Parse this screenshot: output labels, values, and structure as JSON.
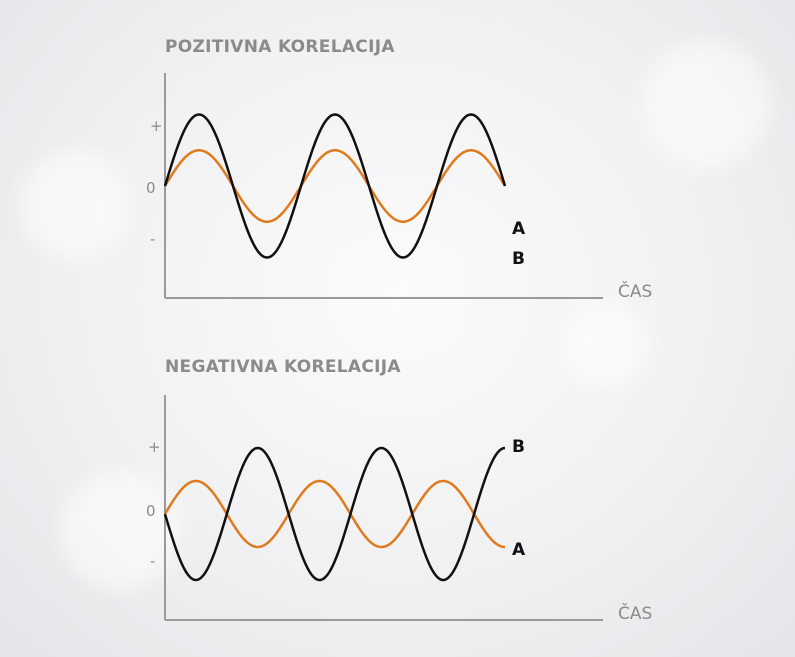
{
  "chart_data": [
    {
      "type": "line",
      "title": "POZITIVNA KORELACIJA",
      "xlabel": "ČAS",
      "yticks": [
        "+",
        "0",
        "-"
      ],
      "grid": false,
      "x_cycles": 2.5,
      "series": [
        {
          "name": "A",
          "color": "#e07a1f",
          "amplitude": 0.55,
          "phase": 1
        },
        {
          "name": "B",
          "color": "#111111",
          "amplitude": 1.1,
          "phase": 1
        }
      ]
    },
    {
      "type": "line",
      "title": "NEGATIVNA KORELACIJA",
      "xlabel": "ČAS",
      "yticks": [
        "+",
        "0",
        "-"
      ],
      "grid": false,
      "x_cycles": 2.75,
      "series": [
        {
          "name": "A",
          "color": "#e07a1f",
          "amplitude": 0.55,
          "phase": 1
        },
        {
          "name": "B",
          "color": "#111111",
          "amplitude": 1.1,
          "phase": -1
        }
      ]
    }
  ]
}
